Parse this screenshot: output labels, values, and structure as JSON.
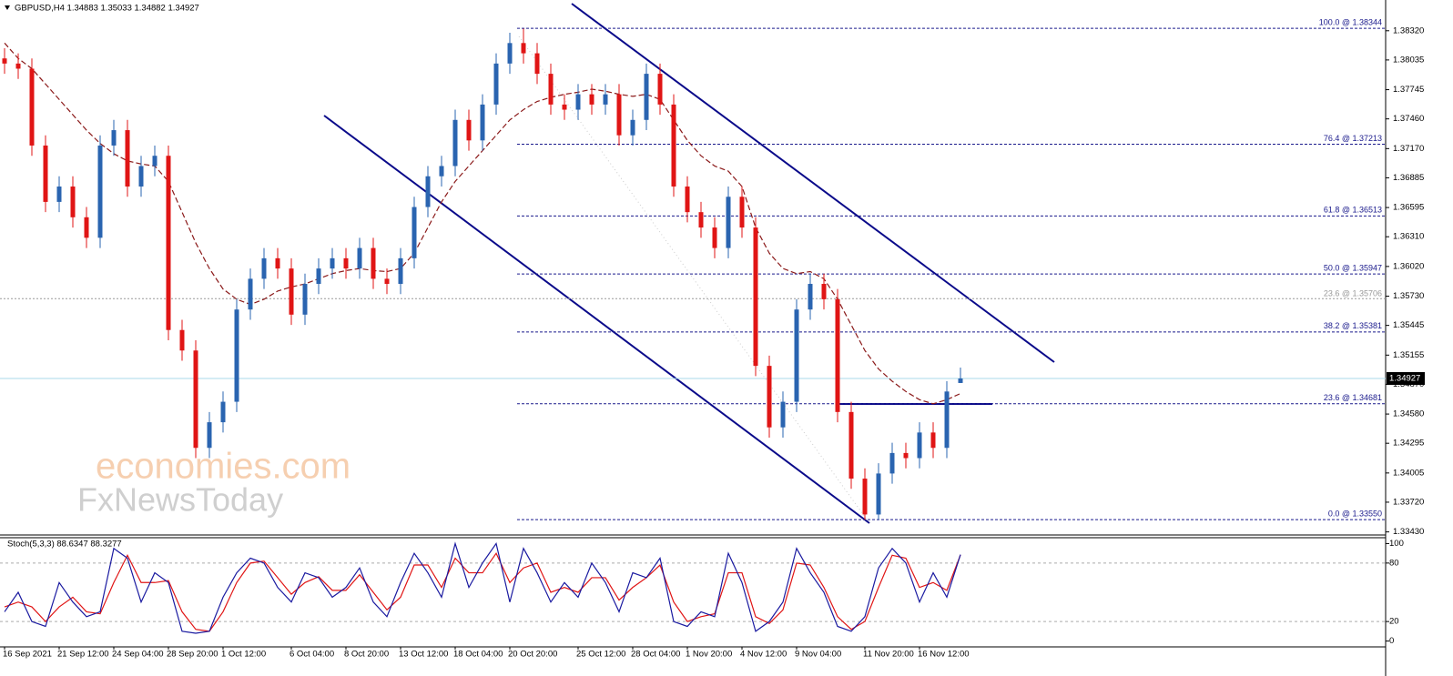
{
  "chart_data": {
    "type": "candlestick",
    "header": "GBPUSD,H4  1.34883 1.35033 1.34882 1.34927",
    "watermark": [
      "economies.com",
      "FxNewsToday"
    ],
    "categories": [
      "16 Sep 2021",
      null,
      null,
      null,
      "21 Sep 12:00",
      null,
      null,
      null,
      "24 Sep 04:00",
      null,
      null,
      null,
      "28 Sep 20:00",
      null,
      null,
      null,
      "1 Oct 12:00",
      null,
      null,
      null,
      null,
      "6 Oct 04:00",
      null,
      null,
      null,
      "8 Oct 20:00",
      null,
      null,
      null,
      "13 Oct 12:00",
      null,
      null,
      null,
      "18 Oct 04:00",
      null,
      null,
      null,
      "20 Oct 20:00",
      null,
      null,
      null,
      null,
      "25 Oct 12:00",
      null,
      null,
      null,
      "28 Oct 04:00",
      null,
      null,
      null,
      "1 Nov 20:00",
      null,
      null,
      null,
      "4 Nov 12:00",
      null,
      null,
      null,
      "9 Nov 04:00",
      null,
      null,
      null,
      null,
      "11 Nov 20:00",
      null,
      null,
      null,
      "16 Nov 12:00",
      null,
      null,
      null
    ],
    "open": [
      1.3805,
      1.38,
      1.3795,
      1.372,
      1.3665,
      1.368,
      1.365,
      1.363,
      1.372,
      1.3735,
      1.368,
      1.37,
      1.371,
      1.354,
      1.352,
      1.3425,
      1.345,
      1.347,
      1.356,
      1.359,
      1.361,
      1.36,
      1.3555,
      1.3585,
      1.36,
      1.361,
      1.36,
      1.362,
      1.359,
      1.3585,
      1.361,
      1.366,
      1.369,
      1.37,
      1.3745,
      1.3725,
      1.376,
      1.38,
      1.382,
      1.381,
      1.379,
      1.376,
      1.3755,
      1.377,
      1.376,
      1.377,
      1.373,
      1.3745,
      1.379,
      1.376,
      1.368,
      1.3655,
      1.364,
      1.362,
      1.367,
      1.364,
      1.3505,
      1.3445,
      1.347,
      1.356,
      1.3585,
      1.357,
      1.346,
      1.3395,
      1.336,
      1.34,
      1.342,
      1.3415,
      1.344,
      1.3425,
      1.34883
    ],
    "high": [
      1.3815,
      1.381,
      1.3805,
      1.373,
      1.369,
      1.369,
      1.366,
      1.373,
      1.3745,
      1.3745,
      1.371,
      1.372,
      1.372,
      1.355,
      1.353,
      1.346,
      1.348,
      1.357,
      1.36,
      1.362,
      1.362,
      1.361,
      1.3595,
      1.361,
      1.362,
      1.362,
      1.363,
      1.363,
      1.36,
      1.362,
      1.367,
      1.37,
      1.371,
      1.3755,
      1.3755,
      1.377,
      1.381,
      1.383,
      1.3834,
      1.382,
      1.38,
      1.377,
      1.378,
      1.378,
      1.378,
      1.378,
      1.3755,
      1.38,
      1.38,
      1.377,
      1.369,
      1.3665,
      1.365,
      1.368,
      1.368,
      1.365,
      1.3515,
      1.348,
      1.357,
      1.3595,
      1.3595,
      1.358,
      1.347,
      1.3405,
      1.341,
      1.343,
      1.343,
      1.345,
      1.345,
      1.349,
      1.35033
    ],
    "low": [
      1.379,
      1.3785,
      1.371,
      1.3655,
      1.3655,
      1.364,
      1.362,
      1.362,
      1.371,
      1.367,
      1.367,
      1.369,
      1.353,
      1.351,
      1.3415,
      1.3415,
      1.344,
      1.346,
      1.355,
      1.358,
      1.359,
      1.3545,
      1.3545,
      1.3575,
      1.359,
      1.359,
      1.359,
      1.358,
      1.3575,
      1.3575,
      1.36,
      1.365,
      1.368,
      1.369,
      1.3715,
      1.3715,
      1.375,
      1.379,
      1.38,
      1.378,
      1.375,
      1.3745,
      1.3745,
      1.375,
      1.375,
      1.372,
      1.372,
      1.3735,
      1.375,
      1.367,
      1.3645,
      1.363,
      1.361,
      1.361,
      1.363,
      1.3495,
      1.3435,
      1.3435,
      1.346,
      1.355,
      1.356,
      1.345,
      1.3385,
      1.3355,
      1.3355,
      1.339,
      1.3405,
      1.3405,
      1.3415,
      1.3415,
      1.34882
    ],
    "close": [
      1.38,
      1.3795,
      1.372,
      1.3665,
      1.368,
      1.365,
      1.363,
      1.372,
      1.3735,
      1.368,
      1.37,
      1.371,
      1.354,
      1.352,
      1.3425,
      1.345,
      1.347,
      1.356,
      1.359,
      1.361,
      1.36,
      1.3555,
      1.3585,
      1.36,
      1.361,
      1.36,
      1.362,
      1.359,
      1.3585,
      1.361,
      1.366,
      1.369,
      1.37,
      1.3745,
      1.3725,
      1.376,
      1.38,
      1.382,
      1.381,
      1.379,
      1.376,
      1.3755,
      1.377,
      1.376,
      1.377,
      1.373,
      1.3745,
      1.379,
      1.376,
      1.368,
      1.3655,
      1.364,
      1.362,
      1.367,
      1.364,
      1.3505,
      1.3445,
      1.347,
      1.356,
      1.3585,
      1.357,
      1.346,
      1.3395,
      1.336,
      1.34,
      1.342,
      1.3415,
      1.344,
      1.3425,
      1.348,
      1.34927
    ],
    "up_color": "#2a64b0",
    "down_color": "#e01515",
    "ma": {
      "color": "#8b1a1a",
      "values": [
        1.382,
        1.3805,
        1.3795,
        1.378,
        1.3765,
        1.375,
        1.3735,
        1.3722,
        1.3712,
        1.3705,
        1.3702,
        1.37,
        1.3685,
        1.3655,
        1.3625,
        1.36,
        1.358,
        1.357,
        1.3565,
        1.357,
        1.3578,
        1.3582,
        1.3585,
        1.359,
        1.3595,
        1.3598,
        1.36,
        1.3598,
        1.3597,
        1.36,
        1.3615,
        1.364,
        1.3665,
        1.3685,
        1.37,
        1.3715,
        1.373,
        1.3745,
        1.3755,
        1.3763,
        1.3767,
        1.377,
        1.3772,
        1.3775,
        1.3773,
        1.377,
        1.3768,
        1.377,
        1.3765,
        1.3745,
        1.3725,
        1.371,
        1.37,
        1.3695,
        1.368,
        1.364,
        1.3615,
        1.36,
        1.3595,
        1.3597,
        1.359,
        1.357,
        1.3545,
        1.352,
        1.3502,
        1.349,
        1.348,
        1.3472,
        1.3468,
        1.3472,
        1.3478
      ]
    },
    "ylim": [
      1.334,
      1.3862
    ],
    "yticks": [
      {
        "value": 1.3832,
        "label": "1.38320"
      },
      {
        "value": 1.38035,
        "label": "1.38035"
      },
      {
        "value": 1.37745,
        "label": "1.37745"
      },
      {
        "value": 1.3746,
        "label": "1.37460"
      },
      {
        "value": 1.3717,
        "label": "1.37170"
      },
      {
        "value": 1.36885,
        "label": "1.36885"
      },
      {
        "value": 1.36595,
        "label": "1.36595"
      },
      {
        "value": 1.3631,
        "label": "1.36310"
      },
      {
        "value": 1.3602,
        "label": "1.36020"
      },
      {
        "value": 1.3573,
        "label": "1.35730"
      },
      {
        "value": 1.35445,
        "label": "1.35445"
      },
      {
        "value": 1.35155,
        "label": "1.35155"
      },
      {
        "value": 1.3487,
        "label": "1.34870"
      },
      {
        "value": 1.3458,
        "label": "1.34580"
      },
      {
        "value": 1.34295,
        "label": "1.34295"
      },
      {
        "value": 1.34005,
        "label": "1.34005"
      },
      {
        "value": 1.3372,
        "label": "1.33720"
      },
      {
        "value": 1.3343,
        "label": "1.33430"
      }
    ],
    "current_price": {
      "value": 1.34927,
      "label": "1.34927"
    },
    "fib_levels": [
      {
        "value": 1.38344,
        "label": "100.0 @ 1.38344"
      },
      {
        "value": 1.37213,
        "label": "76.4 @ 1.37213"
      },
      {
        "value": 1.36513,
        "label": "61.8 @ 1.36513"
      },
      {
        "value": 1.35947,
        "label": "50.0 @ 1.35947"
      },
      {
        "value": 1.35381,
        "label": "38.2 @ 1.35381"
      },
      {
        "value": 1.34681,
        "label": "23.6 @ 1.34681"
      },
      {
        "value": 1.3355,
        "label": "0.0 @ 1.33550"
      }
    ],
    "fib_color": "#1a1a8c",
    "old_fib": {
      "value": 1.35706,
      "label": "23.6 @ 1.35706",
      "color": "#999999"
    },
    "stoch": {
      "title": "Stoch(5,3,3) 88.6347 88.3277",
      "ylim": [
        -6,
        106
      ],
      "yticks": [
        100,
        80,
        20,
        0
      ],
      "levels": [
        80,
        20
      ],
      "k": {
        "color": "#1a1aa0",
        "values": [
          30,
          50,
          20,
          15,
          60,
          40,
          25,
          30,
          95,
          85,
          40,
          70,
          60,
          10,
          8,
          10,
          45,
          70,
          85,
          80,
          55,
          40,
          70,
          65,
          45,
          55,
          75,
          40,
          25,
          60,
          90,
          70,
          45,
          100,
          55,
          80,
          100,
          40,
          95,
          70,
          40,
          60,
          45,
          80,
          60,
          30,
          70,
          65,
          85,
          20,
          15,
          30,
          25,
          90,
          60,
          10,
          20,
          40,
          95,
          70,
          50,
          15,
          10,
          25,
          75,
          95,
          80,
          40,
          70,
          45,
          88.6347
        ]
      },
      "d": {
        "color": "#e01515",
        "values": [
          35,
          40,
          35,
          20,
          35,
          45,
          30,
          28,
          60,
          88,
          60,
          60,
          62,
          30,
          12,
          10,
          30,
          60,
          80,
          82,
          65,
          48,
          60,
          66,
          52,
          52,
          68,
          50,
          32,
          45,
          78,
          78,
          55,
          85,
          70,
          70,
          90,
          60,
          75,
          80,
          50,
          55,
          50,
          65,
          65,
          42,
          55,
          65,
          78,
          40,
          20,
          25,
          28,
          70,
          70,
          25,
          18,
          32,
          80,
          78,
          55,
          25,
          12,
          20,
          55,
          88,
          85,
          55,
          60,
          52,
          88.3277
        ]
      }
    }
  }
}
